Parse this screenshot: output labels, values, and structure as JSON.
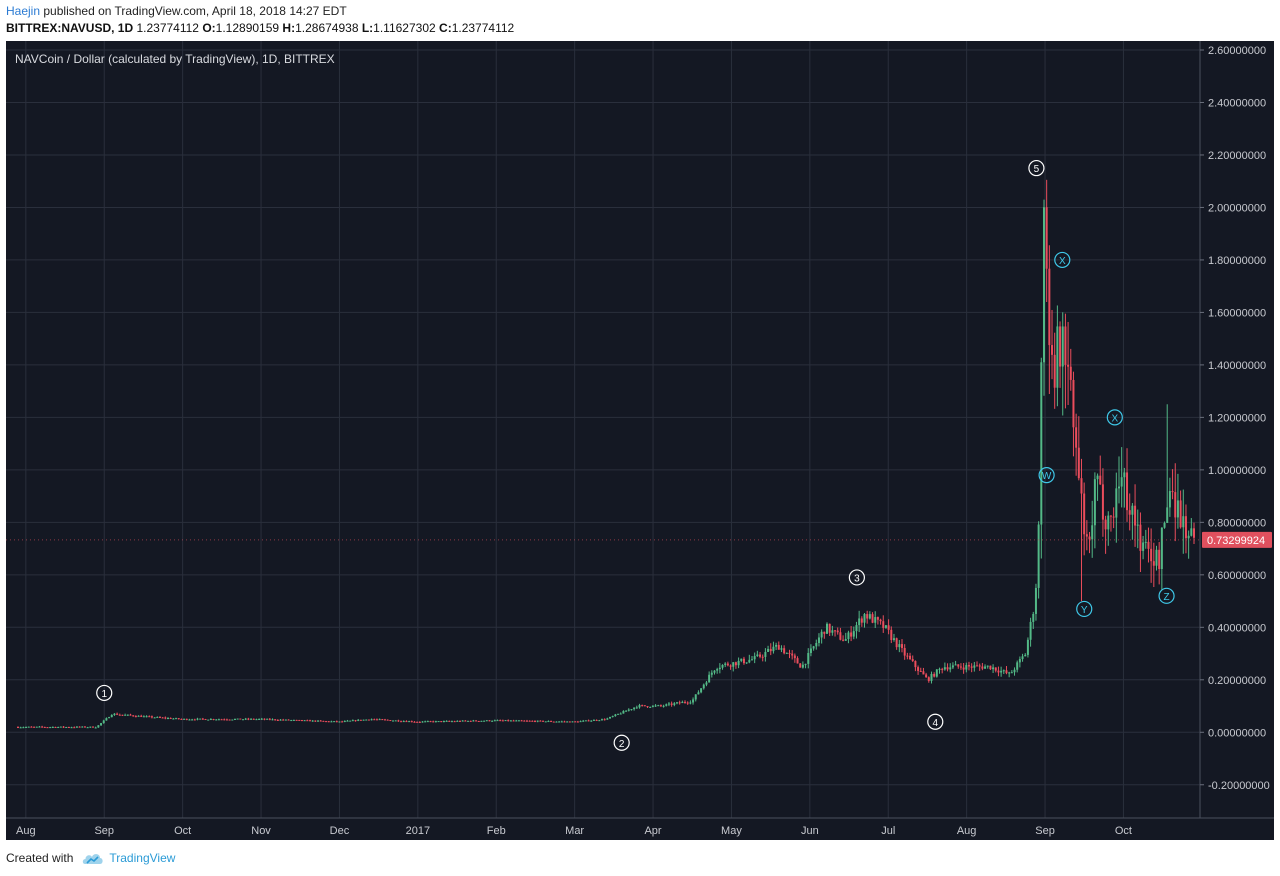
{
  "header": {
    "author": "Haejin",
    "published_text": "published on TradingView.com, April 18, 2018 14:27 EDT",
    "symbol": "BITTREX:NAVUSD, 1D",
    "ohlc": [
      {
        "label": "",
        "value": "1.23774112"
      },
      {
        "label": "O:",
        "value": "1.12890159"
      },
      {
        "label": "H:",
        "value": "1.28674938"
      },
      {
        "label": "L:",
        "value": "1.11627302"
      },
      {
        "label": "C:",
        "value": "1.23774112"
      }
    ]
  },
  "footer": {
    "created_with": "Created with",
    "brand": "TradingView"
  },
  "colors": {
    "background": "#141823",
    "grid": "#2a2f3c",
    "up": "#53b987",
    "down": "#eb4d5c",
    "text": "#c8cad0",
    "wave_label_white": "#ffffff",
    "wave_label_cyan": "#3fc8e8",
    "price_tag": "#e0505e"
  },
  "chart_data": {
    "type": "candlestick",
    "title": "NAVCoin / Dollar (calculated by TradingView), 1D, BITTREX",
    "ylim": [
      -0.3,
      2.62
    ],
    "y_ticks": [
      "2.60000000",
      "2.40000000",
      "2.20000000",
      "2.00000000",
      "1.80000000",
      "1.60000000",
      "1.40000000",
      "1.20000000",
      "1.00000000",
      "0.80000000",
      "0.60000000",
      "0.40000000",
      "0.20000000",
      "0.00000000",
      "-0.20000000"
    ],
    "x_ticks": [
      {
        "label": "Aug",
        "month_index": 0
      },
      {
        "label": "Sep",
        "month_index": 1
      },
      {
        "label": "Oct",
        "month_index": 2
      },
      {
        "label": "Nov",
        "month_index": 3
      },
      {
        "label": "Dec",
        "month_index": 4
      },
      {
        "label": "2017",
        "month_index": 5
      },
      {
        "label": "Feb",
        "month_index": 6
      },
      {
        "label": "Mar",
        "month_index": 7
      },
      {
        "label": "Apr",
        "month_index": 8
      },
      {
        "label": "May",
        "month_index": 9
      },
      {
        "label": "Jun",
        "month_index": 10
      },
      {
        "label": "Jul",
        "month_index": 11
      },
      {
        "label": "Aug",
        "month_index": 12
      },
      {
        "label": "Sep",
        "month_index": 13
      },
      {
        "label": "Oct",
        "month_index": 14
      }
    ],
    "month_span": [
      -0.1,
      14.9
    ],
    "last_price": "0.73299924",
    "price_series": [
      [
        -0.1,
        0.02
      ],
      [
        0.9,
        0.02
      ],
      [
        1.1,
        0.07
      ],
      [
        1.5,
        0.06
      ],
      [
        2.0,
        0.05
      ],
      [
        3.0,
        0.05
      ],
      [
        4.0,
        0.04
      ],
      [
        4.4,
        0.05
      ],
      [
        5.0,
        0.04
      ],
      [
        6.0,
        0.045
      ],
      [
        7.0,
        0.04
      ],
      [
        7.4,
        0.05
      ],
      [
        7.8,
        0.1
      ],
      [
        8.1,
        0.1
      ],
      [
        8.5,
        0.12
      ],
      [
        8.8,
        0.25
      ],
      [
        9.3,
        0.28
      ],
      [
        9.6,
        0.33
      ],
      [
        9.9,
        0.25
      ],
      [
        10.2,
        0.4
      ],
      [
        10.45,
        0.35
      ],
      [
        10.7,
        0.45
      ],
      [
        10.95,
        0.4
      ],
      [
        11.2,
        0.3
      ],
      [
        11.5,
        0.2
      ],
      [
        11.7,
        0.25
      ],
      [
        12.0,
        0.25
      ],
      [
        12.3,
        0.25
      ],
      [
        12.55,
        0.22
      ],
      [
        12.75,
        0.3
      ],
      [
        12.9,
        0.55
      ],
      [
        13.0,
        1.85
      ],
      [
        13.1,
        1.4
      ],
      [
        13.25,
        1.5
      ],
      [
        13.35,
        1.2
      ],
      [
        13.45,
        0.9
      ],
      [
        13.55,
        0.65
      ],
      [
        13.65,
        0.95
      ],
      [
        13.75,
        0.85
      ],
      [
        13.85,
        0.8
      ],
      [
        13.95,
        1.0
      ],
      [
        14.1,
        0.85
      ],
      [
        14.25,
        0.7
      ],
      [
        14.45,
        0.65
      ],
      [
        14.6,
        0.95
      ],
      [
        14.75,
        0.8
      ],
      [
        14.9,
        0.73
      ]
    ],
    "wave_labels": [
      {
        "text": "1",
        "x": 1.0,
        "y": 0.15,
        "color": "white"
      },
      {
        "text": "2",
        "x": 7.6,
        "y": -0.04,
        "color": "white"
      },
      {
        "text": "3",
        "x": 10.6,
        "y": 0.59,
        "color": "white"
      },
      {
        "text": "4",
        "x": 11.6,
        "y": 0.04,
        "color": "white"
      },
      {
        "text": "5",
        "x": 12.89,
        "y": 2.15,
        "color": "white"
      },
      {
        "text": "W",
        "x": 13.02,
        "y": 0.98,
        "color": "cyan"
      },
      {
        "text": "X",
        "x": 13.22,
        "y": 1.8,
        "color": "cyan"
      },
      {
        "text": "Y",
        "x": 13.5,
        "y": 0.47,
        "color": "cyan"
      },
      {
        "text": "X",
        "x": 13.89,
        "y": 1.2,
        "color": "cyan"
      },
      {
        "text": "Z",
        "x": 14.55,
        "y": 0.52,
        "color": "cyan"
      }
    ]
  }
}
